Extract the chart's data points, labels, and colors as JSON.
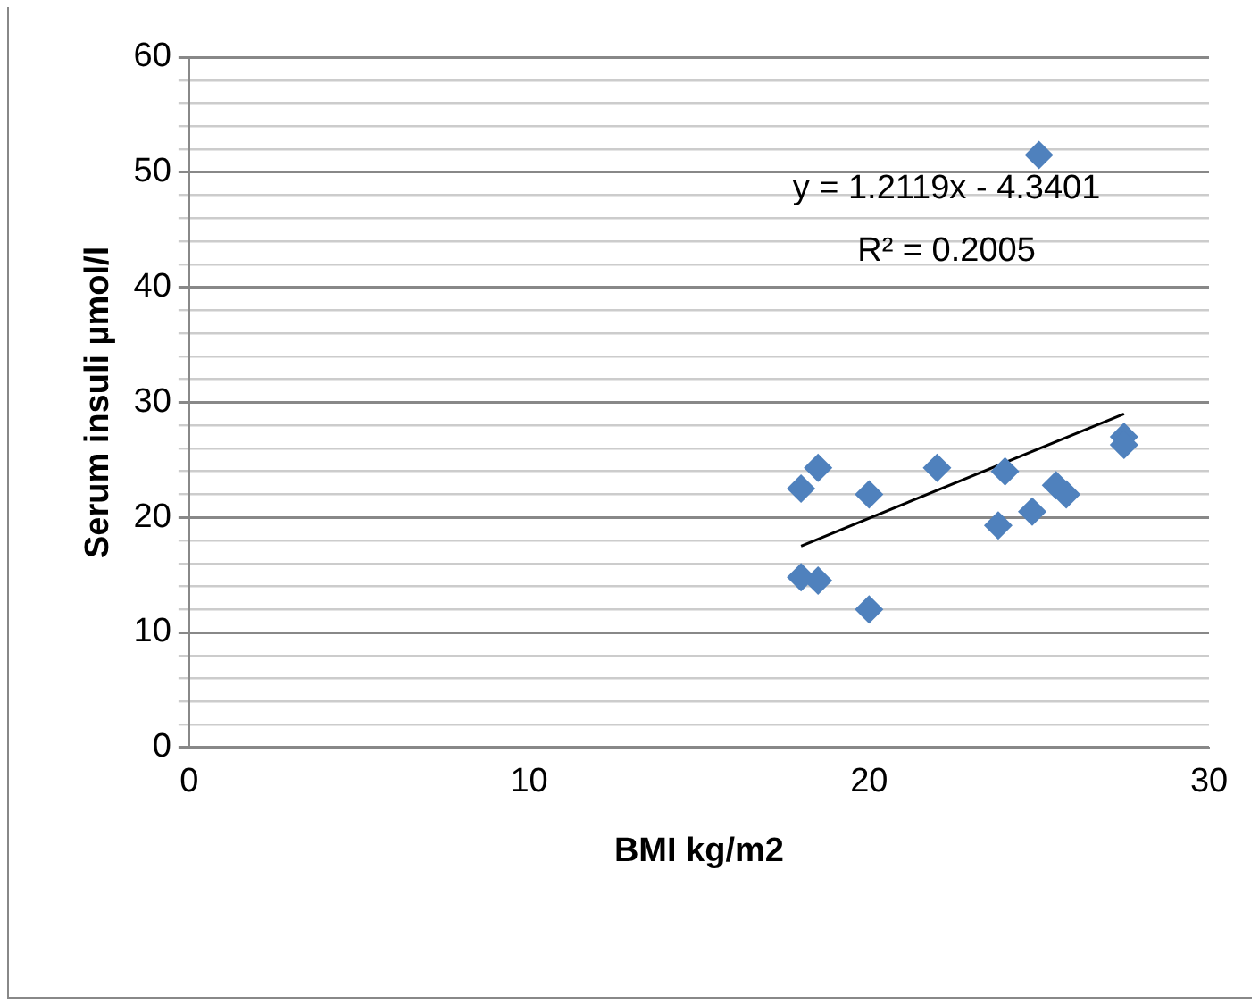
{
  "chart_data": {
    "type": "scatter",
    "xlabel": "BMI kg/m2",
    "ylabel": "Serum insuli µmol/l",
    "x": [
      18,
      18.5,
      20,
      22,
      24,
      23.8,
      24.8,
      25.5,
      25.8,
      27.5,
      27.5,
      18,
      18.5,
      20,
      25
    ],
    "series": [
      {
        "type": "scatter",
        "color": "#4f81bd",
        "marker": "diamond",
        "values": [
          22.5,
          24.3,
          22,
          24.3,
          24,
          19.3,
          20.5,
          22.8,
          22,
          27,
          26.3,
          14.8,
          14.5,
          12,
          51.5
        ]
      },
      {
        "type": "line",
        "color": "#000000",
        "marker": "none",
        "x": [
          18,
          27.5
        ],
        "values": [
          17.5,
          29
        ]
      }
    ],
    "xlim": [
      0,
      30
    ],
    "xticks": [
      0,
      10,
      20,
      30
    ],
    "ylim": [
      0,
      60
    ],
    "yticks": [
      0,
      {
        "value": 2,
        "label": null
      },
      {
        "value": 4,
        "label": null
      },
      {
        "value": 6,
        "label": null
      },
      {
        "value": 8,
        "label": null
      },
      10,
      {
        "value": 12,
        "label": null
      },
      {
        "value": 14,
        "label": null
      },
      {
        "value": 16,
        "label": null
      },
      {
        "value": 18,
        "label": null
      },
      20,
      {
        "value": 22,
        "label": null
      },
      {
        "value": 24,
        "label": null
      },
      {
        "value": 26,
        "label": null
      },
      {
        "value": 28,
        "label": null
      },
      30,
      {
        "value": 32,
        "label": null
      },
      {
        "value": 34,
        "label": null
      },
      {
        "value": 36,
        "label": null
      },
      {
        "value": 38,
        "label": null
      },
      40,
      {
        "value": 42,
        "label": null
      },
      {
        "value": 44,
        "label": null
      },
      {
        "value": 46,
        "label": null
      },
      {
        "value": 48,
        "label": null
      },
      50,
      {
        "value": 52,
        "label": null
      },
      {
        "value": 54,
        "label": null
      },
      {
        "value": 56,
        "label": null
      },
      {
        "value": 58,
        "label": null
      },
      60
    ],
    "grid": "y",
    "legend": false,
    "annotations": [
      "y = 1.2119x - 4.3401",
      "R² = 0.2005"
    ]
  }
}
